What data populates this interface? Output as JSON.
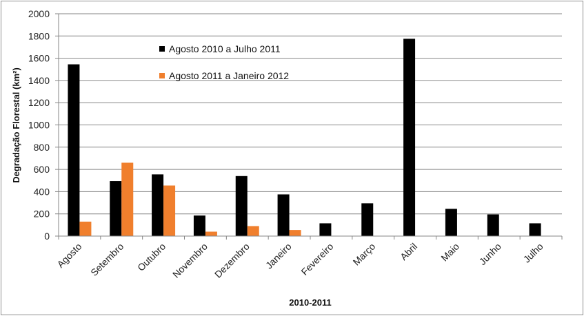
{
  "chart_data": {
    "type": "bar",
    "title": "",
    "xlabel": "2010-2011",
    "ylabel": "Degradação Florestal (km²)",
    "ylim": [
      0,
      2000
    ],
    "yticks": [
      "0",
      "200",
      "400",
      "600",
      "800",
      "1000",
      "1200",
      "1400",
      "1600",
      "1800",
      "2000"
    ],
    "grid": true,
    "legend_position": "top-center",
    "categories": [
      "Agosto",
      "Setembro",
      "Outubro",
      "Novembro",
      "Dezembro",
      "Janeiro",
      "Fevereiro",
      "Março",
      "Abril",
      "Maio",
      "Junho",
      "Julho"
    ],
    "series": [
      {
        "name": "Agosto 2010 a Julho 2011",
        "color": "#000000",
        "values": [
          1545,
          495,
          555,
          185,
          540,
          375,
          115,
          295,
          1775,
          245,
          195,
          115
        ]
      },
      {
        "name": "Agosto 2011 a Janeiro 2012",
        "color": "#F07F2D",
        "values": [
          130,
          660,
          455,
          40,
          90,
          55,
          null,
          null,
          null,
          null,
          null,
          null
        ]
      }
    ]
  }
}
